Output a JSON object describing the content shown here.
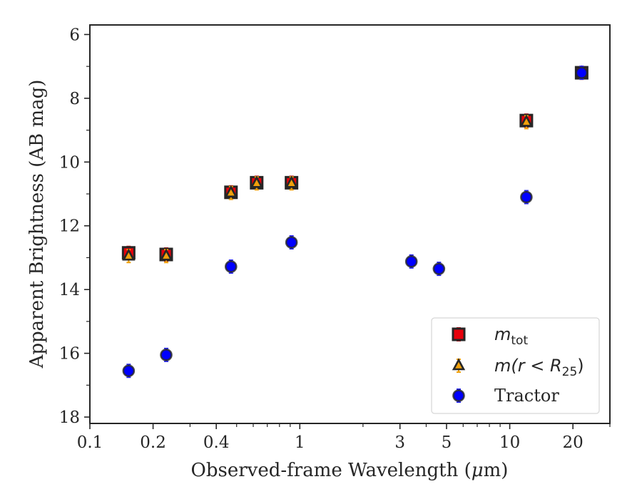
{
  "chart_data": {
    "type": "scatter",
    "xscale": "log",
    "yinverted": true,
    "xlim": [
      0.1,
      30
    ],
    "ylim": [
      18.2,
      5.7
    ],
    "xlabel_prefix": "Observed-frame Wavelength (",
    "xlabel_mu": "μ",
    "xlabel_suffix": "m)",
    "ylabel": "Apparent Brightness (AB mag)",
    "x_major_ticks": [
      {
        "value": 0.1,
        "label": "0.1"
      },
      {
        "value": 0.2,
        "label": "0.2"
      },
      {
        "value": 0.4,
        "label": "0.4"
      },
      {
        "value": 1,
        "label": "1"
      },
      {
        "value": 3,
        "label": "3"
      },
      {
        "value": 5,
        "label": "5"
      },
      {
        "value": 10,
        "label": "10"
      },
      {
        "value": 20,
        "label": "20"
      }
    ],
    "x_minor_ticks": [
      0.3,
      0.5,
      0.6,
      0.7,
      0.8,
      0.9,
      2,
      4,
      6,
      7,
      8,
      9,
      30
    ],
    "y_major_ticks": [
      {
        "value": 6,
        "label": "6"
      },
      {
        "value": 8,
        "label": "8"
      },
      {
        "value": 10,
        "label": "10"
      },
      {
        "value": 12,
        "label": "12"
      },
      {
        "value": 14,
        "label": "14"
      },
      {
        "value": 16,
        "label": "16"
      },
      {
        "value": 18,
        "label": "18"
      }
    ],
    "y_minor_ticks": [
      7,
      9,
      11,
      13,
      15,
      17
    ],
    "legend_position": "lower-right",
    "series": [
      {
        "key": "mtot",
        "marker": "square",
        "color": "#e8000b",
        "edge": "#262626",
        "errcolor": "#e8000b",
        "legend_main": "m",
        "legend_sub": "tot",
        "x": [
          0.153,
          0.231,
          0.47,
          0.623,
          0.913,
          12,
          22
        ],
        "y": [
          12.85,
          12.9,
          10.95,
          10.65,
          10.65,
          8.7,
          7.2
        ]
      },
      {
        "key": "mr25",
        "marker": "triangle",
        "color": "#f1a10b",
        "edge": "#262626",
        "errcolor": "#f1a10b",
        "legend_main": "m(r < R",
        "legend_sub": "25",
        "legend_tail": ")",
        "x": [
          0.153,
          0.231,
          0.47,
          0.623,
          0.913,
          12,
          22
        ],
        "y": [
          12.95,
          12.95,
          10.97,
          10.67,
          10.67,
          8.75,
          7.2
        ]
      },
      {
        "key": "tractor",
        "marker": "circle",
        "color": "#0000ff",
        "edge": "#262626",
        "errcolor": "#2222ff",
        "legend_label": "Tractor",
        "x": [
          0.153,
          0.231,
          0.47,
          0.913,
          3.4,
          4.6,
          12,
          22
        ],
        "y": [
          16.55,
          16.05,
          13.28,
          12.52,
          13.12,
          13.35,
          11.1,
          7.2
        ]
      }
    ]
  }
}
